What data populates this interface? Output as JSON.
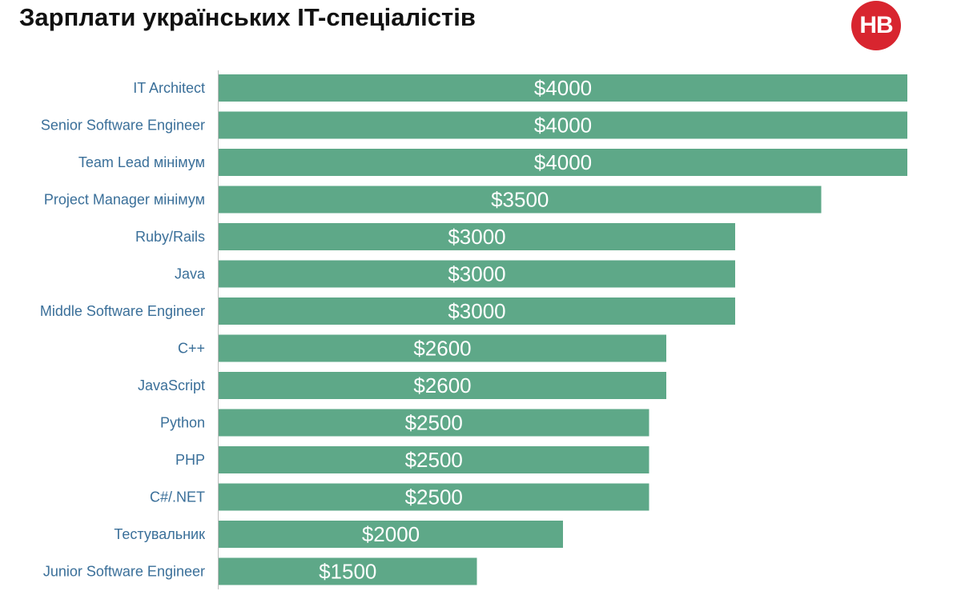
{
  "title": "Зарплати українських IT-спеціалістів",
  "logo": {
    "text": "НВ",
    "color": "#d8252f"
  },
  "chart_data": {
    "type": "bar",
    "orientation": "horizontal",
    "title": "Зарплати українських IT-спеціалістів",
    "categories": [
      "IT Architect",
      "Senior Software Engineer",
      "Team Lead мінімум",
      "Project Manager мінімум",
      "Ruby/Rails",
      "Java",
      "Middle Software Engineer",
      "C++",
      "JavaScript",
      "Python",
      "PHP",
      "C#/.NET",
      "Тестувальник",
      "Junior Software Engineer"
    ],
    "values": [
      4000,
      4000,
      4000,
      3500,
      3000,
      3000,
      3000,
      2600,
      2600,
      2500,
      2500,
      2500,
      2000,
      1500
    ],
    "value_labels": [
      "$4000",
      "$4000",
      "$4000",
      "$3500",
      "$3000",
      "$3000",
      "$3000",
      "$2600",
      "$2600",
      "$2500",
      "$2500",
      "$2500",
      "$2000",
      "$1500"
    ],
    "xlim": [
      0,
      4000
    ],
    "grid": false,
    "legend": "none",
    "bar_color": "#5ea888",
    "label_color": "#3a6f99",
    "value_label_color": "#ffffff"
  }
}
